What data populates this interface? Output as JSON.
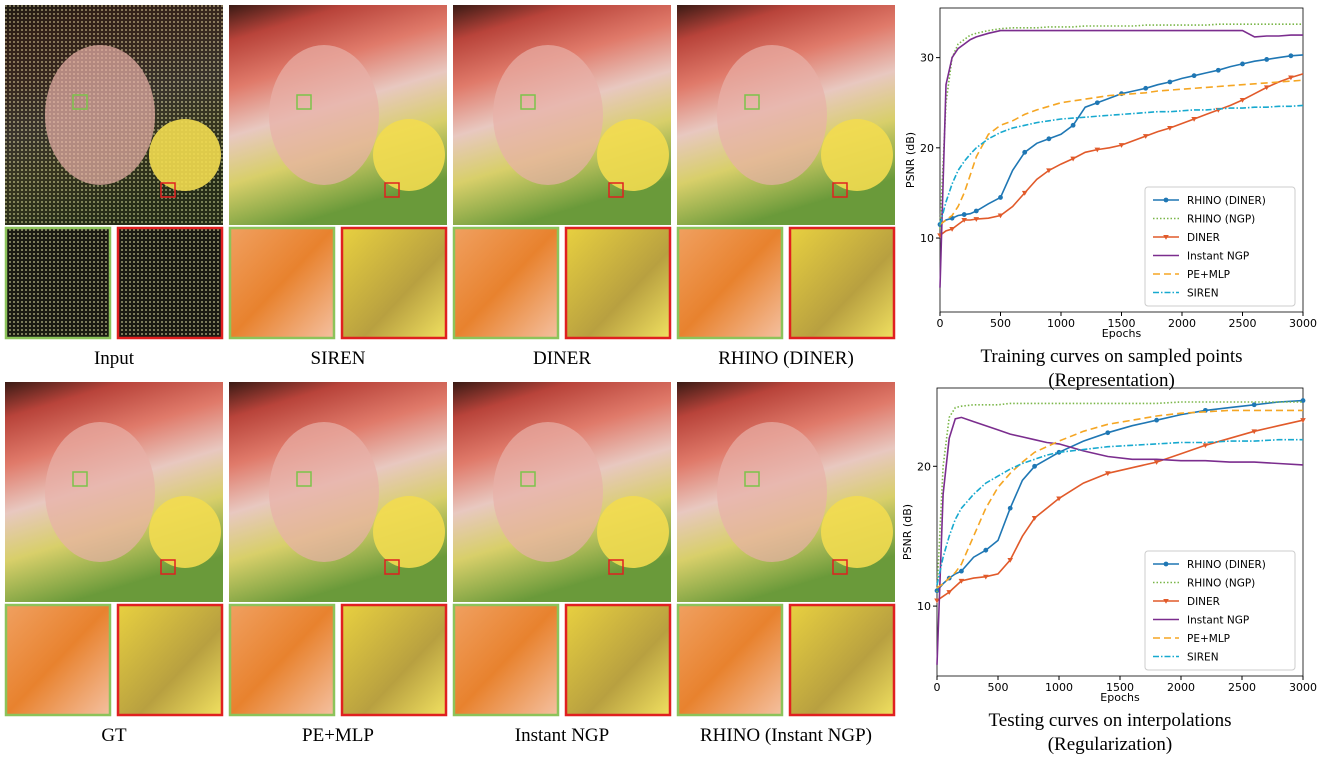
{
  "figure": {
    "panels": [
      {
        "caption": "Input"
      },
      {
        "caption": "SIREN"
      },
      {
        "caption": "DINER"
      },
      {
        "caption": "RHINO (DINER)"
      },
      {
        "caption": "GT"
      },
      {
        "caption": "PE+MLP"
      },
      {
        "caption": "Instant NGP"
      },
      {
        "caption": "RHINO (Instant NGP)"
      }
    ]
  },
  "chart_data": [
    {
      "type": "line",
      "title": "Training curves on sampled points",
      "subtitle": "(Representation)",
      "x_label": "Epochs",
      "y_label": "PSNR (dB)",
      "legend": "lower right",
      "xlim": [
        0,
        3000
      ],
      "xticks": [
        0,
        500,
        1000,
        1500,
        2000,
        2500,
        3000
      ],
      "ylim": [
        1.8,
        35.5
      ],
      "yticks": [
        10,
        20,
        30
      ],
      "x": [
        0,
        50,
        100,
        150,
        200,
        250,
        300,
        400,
        500,
        600,
        700,
        800,
        900,
        1000,
        1100,
        1200,
        1300,
        1400,
        1500,
        1600,
        1700,
        1800,
        1900,
        2000,
        2100,
        2200,
        2300,
        2400,
        2500,
        2600,
        2700,
        2800,
        2900,
        3000
      ],
      "series": [
        {
          "name": "RHINO (DINER)",
          "color": "#1f77b4",
          "linestyle": "solid",
          "marker": "circle",
          "values": [
            11.5,
            12,
            12.2,
            12.5,
            12.6,
            12.7,
            13,
            13.8,
            14.5,
            17.5,
            19.5,
            20.5,
            21,
            21.5,
            22.5,
            24.5,
            25,
            25.5,
            26,
            26.3,
            26.6,
            27,
            27.3,
            27.7,
            28,
            28.3,
            28.6,
            29,
            29.3,
            29.6,
            29.8,
            30,
            30.2,
            30.3
          ]
        },
        {
          "name": "RHINO (NGP)",
          "color": "#7ab648",
          "linestyle": "dotted",
          "values": [
            11,
            25,
            30,
            31.5,
            32,
            32.5,
            32.7,
            33,
            33.2,
            33.3,
            33.3,
            33.3,
            33.4,
            33.4,
            33.4,
            33.5,
            33.5,
            33.5,
            33.5,
            33.5,
            33.6,
            33.6,
            33.6,
            33.6,
            33.6,
            33.6,
            33.7,
            33.7,
            33.7,
            33.7,
            33.7,
            33.7,
            33.7,
            33.7
          ]
        },
        {
          "name": "DINER",
          "color": "#e15a2a",
          "linestyle": "solid",
          "marker": "triangle",
          "values": [
            10.3,
            10.8,
            11,
            11.5,
            12,
            12,
            12.1,
            12.2,
            12.5,
            13.5,
            15,
            16.5,
            17.5,
            18.2,
            18.8,
            19.5,
            19.8,
            20,
            20.3,
            20.8,
            21.3,
            21.8,
            22.2,
            22.7,
            23.2,
            23.7,
            24.2,
            24.7,
            25.3,
            26,
            26.7,
            27.3,
            27.8,
            28.2
          ]
        },
        {
          "name": "Instant NGP",
          "color": "#7b2d8e",
          "linestyle": "solid",
          "values": [
            4.5,
            27,
            30,
            31,
            31.5,
            32,
            32.3,
            32.7,
            33,
            33,
            33,
            33,
            33,
            33,
            33,
            33,
            33,
            33,
            33,
            33,
            33,
            33,
            33,
            33,
            33,
            33,
            33,
            33,
            33,
            32.3,
            32.4,
            32.4,
            32.5,
            32.5
          ]
        },
        {
          "name": "PE+MLP",
          "color": "#f5a623",
          "linestyle": "dashed",
          "values": [
            11.5,
            12,
            12.5,
            13.5,
            15,
            17,
            19,
            21.5,
            22.5,
            23,
            23.7,
            24.2,
            24.6,
            25,
            25.2,
            25.4,
            25.6,
            25.8,
            25.9,
            26,
            26.1,
            26.3,
            26.4,
            26.5,
            26.6,
            26.7,
            26.8,
            26.9,
            27,
            27.1,
            27.2,
            27.3,
            27.4,
            27.5
          ]
        },
        {
          "name": "SIREN",
          "color": "#17a9cf",
          "linestyle": "dashdot",
          "values": [
            11.5,
            14,
            16,
            17.5,
            18.5,
            19.3,
            20,
            21,
            21.7,
            22.2,
            22.5,
            22.8,
            23,
            23.2,
            23.3,
            23.4,
            23.5,
            23.6,
            23.7,
            23.8,
            23.9,
            24,
            24,
            24.1,
            24.2,
            24.2,
            24.3,
            24.4,
            24.4,
            24.5,
            24.5,
            24.6,
            24.6,
            24.7
          ]
        }
      ]
    },
    {
      "type": "line",
      "title": "Testing curves on interpolations",
      "subtitle": "(Regularization)",
      "x_label": "Epochs",
      "y_label": "PSNR (dB)",
      "legend": "lower right",
      "xlim": [
        0,
        3000
      ],
      "xticks": [
        0,
        500,
        1000,
        1500,
        2000,
        2500,
        3000
      ],
      "ylim": [
        5,
        25.6
      ],
      "yticks": [
        10,
        20
      ],
      "x": [
        0,
        50,
        100,
        150,
        200,
        300,
        400,
        500,
        600,
        700,
        800,
        900,
        1000,
        1200,
        1400,
        1600,
        1800,
        2000,
        2200,
        2400,
        2600,
        2800,
        3000
      ],
      "series": [
        {
          "name": "RHINO (DINER)",
          "color": "#1f77b4",
          "linestyle": "solid",
          "marker": "circle",
          "values": [
            11.1,
            11.6,
            12,
            12.3,
            12.5,
            13.5,
            14,
            14.7,
            17,
            19,
            20,
            20.5,
            21,
            21.8,
            22.4,
            22.9,
            23.3,
            23.7,
            24,
            24.2,
            24.4,
            24.6,
            24.7
          ]
        },
        {
          "name": "RHINO (NGP)",
          "color": "#7ab648",
          "linestyle": "dotted",
          "values": [
            11,
            20,
            23.5,
            24.2,
            24.3,
            24.4,
            24.4,
            24.4,
            24.5,
            24.5,
            24.5,
            24.5,
            24.5,
            24.5,
            24.5,
            24.5,
            24.5,
            24.6,
            24.6,
            24.6,
            24.6,
            24.6,
            24.6
          ]
        },
        {
          "name": "DINER",
          "color": "#e15a2a",
          "linestyle": "solid",
          "marker": "triangle",
          "values": [
            10.4,
            10.7,
            11,
            11.4,
            11.8,
            12,
            12.1,
            12.3,
            13.3,
            15,
            16.3,
            17,
            17.7,
            18.8,
            19.5,
            19.9,
            20.3,
            20.9,
            21.5,
            22,
            22.5,
            22.9,
            23.3
          ]
        },
        {
          "name": "Instant NGP",
          "color": "#7b2d8e",
          "linestyle": "solid",
          "values": [
            5.8,
            18,
            22,
            23.4,
            23.5,
            23.2,
            22.9,
            22.6,
            22.3,
            22.1,
            21.9,
            21.7,
            21.6,
            21.1,
            20.7,
            20.5,
            20.5,
            20.4,
            20.4,
            20.3,
            20.3,
            20.2,
            20.1
          ]
        },
        {
          "name": "PE+MLP",
          "color": "#f5a623",
          "linestyle": "dashed",
          "values": [
            11.3,
            11.6,
            12,
            12.4,
            13,
            15,
            17,
            18.5,
            19.5,
            20.3,
            21,
            21.4,
            21.8,
            22.5,
            23,
            23.3,
            23.6,
            23.8,
            23.9,
            24,
            24,
            24,
            24
          ]
        },
        {
          "name": "SIREN",
          "color": "#17a9cf",
          "linestyle": "dashdot",
          "values": [
            11.5,
            13.5,
            15,
            16.2,
            17,
            18,
            18.8,
            19.3,
            19.8,
            20.2,
            20.5,
            20.8,
            21,
            21.2,
            21.4,
            21.5,
            21.6,
            21.7,
            21.7,
            21.8,
            21.8,
            21.9,
            21.9
          ]
        }
      ]
    }
  ]
}
